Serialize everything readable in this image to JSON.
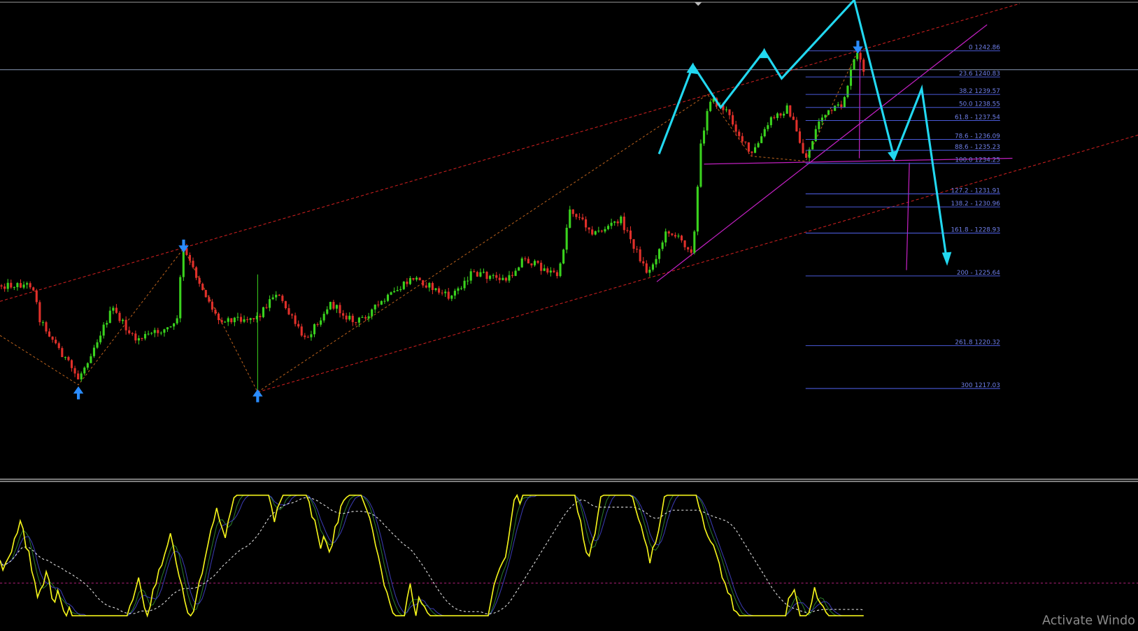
{
  "fib_levels": [
    "0 1242.86",
    "23.6 1240.83",
    "38.2 1239.57",
    "50.0 1238.55",
    "61.8 - 1237.54",
    "78.6 - 1236.09",
    "88.6 - 1235.23",
    "100.0 1234.25",
    "127.2 - 1231.91",
    "138.2 - 1230.96",
    "161.8 - 1228.93",
    "200 - 1225.64",
    "261.8 1220.32",
    "300 1217.03"
  ],
  "watermark": "Activate Windo"
}
